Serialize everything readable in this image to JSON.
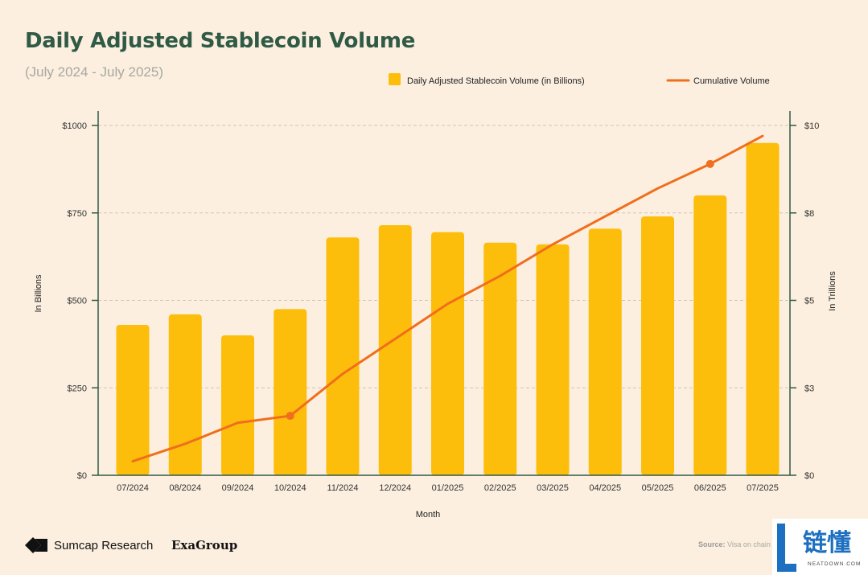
{
  "header": {
    "title": "Daily Adjusted Stablecoin Volume",
    "subtitle": "(July 2024 - July 2025)"
  },
  "footer": {
    "brand": "Sumcap Research",
    "partner": "ExaGroup",
    "source_label": "Source:",
    "source_text": "Visa on chain"
  },
  "watermark": {
    "text": "链懂",
    "sub": "NEATDOWN.COM"
  },
  "colors": {
    "bar": "#fdbd0b",
    "line": "#f06e1c",
    "title": "#2f5a45",
    "axis": "#2f5a45",
    "grid": "#cfc6b8"
  },
  "chart_data": {
    "type": "bar",
    "xlabel": "Month",
    "ylabel": "In Billions",
    "ylabel_right": "In Trillions",
    "ylim": [
      0,
      1000
    ],
    "ylim_right": [
      0,
      10
    ],
    "yticks": [
      "$0",
      "$250",
      "$500",
      "$750",
      "$1000"
    ],
    "yticks_right": [
      "$0",
      "$3",
      "$5",
      "$8",
      "$10"
    ],
    "grid": true,
    "legend_position": "top-right",
    "categories": [
      "07/2024",
      "08/2024",
      "09/2024",
      "10/2024",
      "11/2024",
      "12/2024",
      "01/2025",
      "02/2025",
      "03/2025",
      "04/2025",
      "05/2025",
      "06/2025",
      "07/2025"
    ],
    "series": [
      {
        "name": "Daily Adjusted Stablecoin Volume (in Billions)",
        "type": "bar",
        "axis": "left",
        "values": [
          430,
          460,
          400,
          475,
          680,
          715,
          695,
          665,
          660,
          705,
          740,
          800,
          950
        ]
      },
      {
        "name": "Cumulative Volume",
        "type": "line",
        "axis": "right",
        "values": [
          0.4,
          0.9,
          1.5,
          1.7,
          2.9,
          3.9,
          4.9,
          5.7,
          6.6,
          7.4,
          8.2,
          8.9,
          9.7
        ],
        "markers_at": [
          3,
          11
        ]
      }
    ]
  }
}
